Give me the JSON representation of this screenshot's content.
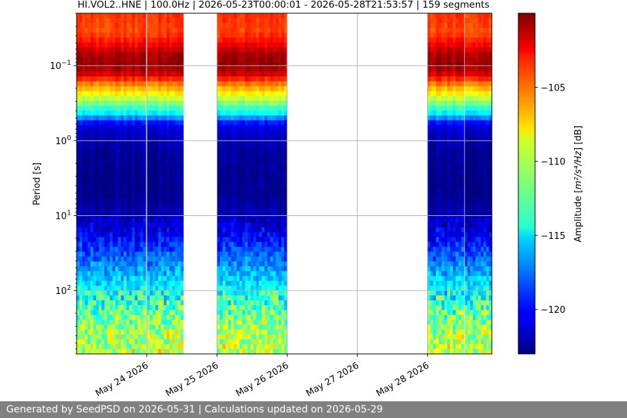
{
  "chart_data": {
    "type": "heatmap",
    "title": "HI.VOL2..HNE | 100.0Hz | 2026-05-23T00:00:01 - 2026-05-28T21:53:57 | 159 segments",
    "xlabel": "",
    "ylabel": "Period [s]",
    "y_scale": "log",
    "y_inverted": true,
    "y_range_seconds": [
      0.02,
      700
    ],
    "x_range": [
      "2026-05-23T00:00",
      "2026-05-28T22:00"
    ],
    "x_ticks": [
      {
        "label": "May 24 2026",
        "date": "2026-05-24"
      },
      {
        "label": "May 25 2026",
        "date": "2026-05-25"
      },
      {
        "label": "May 26 2026",
        "date": "2026-05-26"
      },
      {
        "label": "May 27 2026",
        "date": "2026-05-27"
      },
      {
        "label": "May 28 2026",
        "date": "2026-05-28"
      }
    ],
    "y_ticks": [
      {
        "base": "10",
        "exp": "−1",
        "value": 0.1
      },
      {
        "base": "10",
        "exp": "0",
        "value": 1
      },
      {
        "base": "10",
        "exp": "1",
        "value": 10
      },
      {
        "base": "10",
        "exp": "2",
        "value": 100
      }
    ],
    "grid": true,
    "colormap": "jet",
    "colorbar": {
      "label_prefix": "Amplitude [",
      "label_unit": "m²/s⁴/Hz",
      "label_suffix": "] [dB]",
      "range_db": [
        -123,
        -100
      ],
      "ticks": [
        {
          "label": "−105",
          "value": -105
        },
        {
          "label": "−110",
          "value": -110
        },
        {
          "label": "−115",
          "value": -115
        },
        {
          "label": "−120",
          "value": -120
        }
      ]
    },
    "data_segments": [
      {
        "start": "2026-05-23T00:00",
        "end": "2026-05-23T23:40"
      },
      {
        "start": "2026-05-24T00:05",
        "end": "2026-05-24T12:30"
      },
      {
        "start": "2026-05-25T00:00",
        "end": "2026-05-25T23:55"
      },
      {
        "start": "2026-05-28T00:00",
        "end": "2026-05-28T12:30"
      },
      {
        "start": "2026-05-28T12:45",
        "end": "2026-05-28T21:54"
      }
    ],
    "psd_profile_db": [
      {
        "period": 0.02,
        "db": -104
      },
      {
        "period": 0.035,
        "db": -104.5
      },
      {
        "period": 0.05,
        "db": -103
      },
      {
        "period": 0.07,
        "db": -101
      },
      {
        "period": 0.1,
        "db": -100.5
      },
      {
        "period": 0.13,
        "db": -102
      },
      {
        "period": 0.18,
        "db": -106
      },
      {
        "period": 0.25,
        "db": -109
      },
      {
        "period": 0.33,
        "db": -112
      },
      {
        "period": 0.45,
        "db": -115
      },
      {
        "period": 0.6,
        "db": -120.5
      },
      {
        "period": 0.8,
        "db": -121.5
      },
      {
        "period": 1.5,
        "db": -122.5
      },
      {
        "period": 5,
        "db": -122.8
      },
      {
        "period": 12,
        "db": -121.5
      },
      {
        "period": 20,
        "db": -120
      },
      {
        "period": 40,
        "db": -117.5
      },
      {
        "period": 80,
        "db": -115
      },
      {
        "period": 150,
        "db": -113
      },
      {
        "period": 300,
        "db": -111
      },
      {
        "period": 700,
        "db": -110
      }
    ]
  },
  "footer": {
    "text": "Generated by SeedPSD on 2026-05-31 | Calculations updated on 2026-05-29"
  }
}
